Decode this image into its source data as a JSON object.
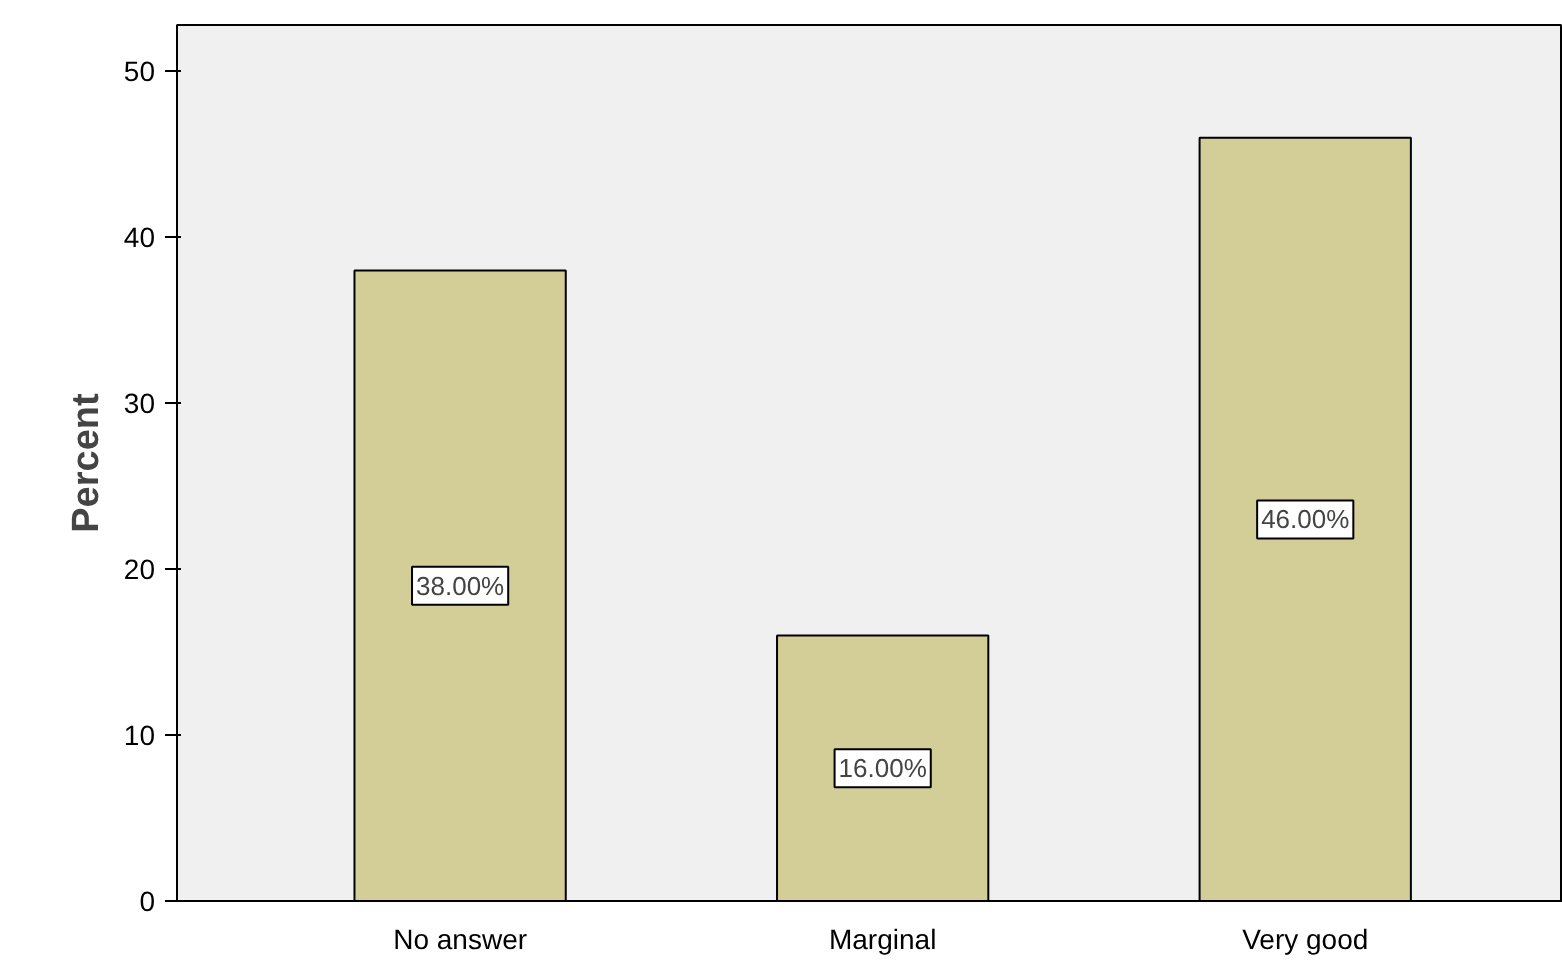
{
  "chart_data": {
    "type": "bar",
    "ylabel": "Percent",
    "categories": [
      "No answer",
      "Marginal",
      "Very good"
    ],
    "values": [
      38,
      16,
      46
    ],
    "value_labels": [
      "38.00%",
      "16.00%",
      "46.00%"
    ],
    "color": "#d3ce97",
    "ylim": [
      0,
      52.8
    ],
    "yticks": [
      0,
      10,
      20,
      30,
      40,
      50
    ],
    "grid": false
  }
}
